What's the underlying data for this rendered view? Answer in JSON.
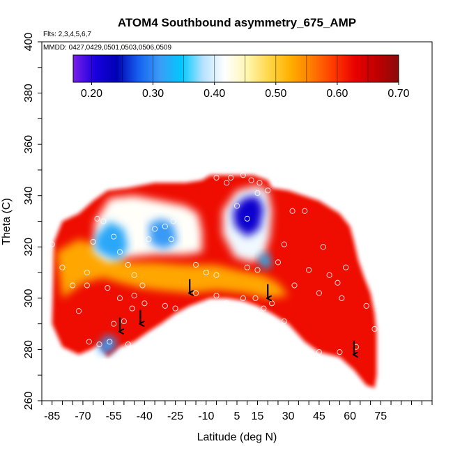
{
  "chart_data": {
    "type": "heatmap",
    "title": "ATOM4 Southbound asymmetry_675_AMP",
    "subtitle_flights": "Flts: 2,3,4,5,6,7",
    "subtitle_dates": "MMDD: 0427,0429,0501,0503,0506,0509",
    "xlabel": "Latitude (deg N)",
    "ylabel": "Theta (C)",
    "xlim": [
      -90,
      100
    ],
    "ylim": [
      260,
      400
    ],
    "x_ticks": [
      -85,
      -70,
      -55,
      -40,
      -25,
      -10,
      5,
      15,
      30,
      45,
      60,
      75
    ],
    "y_ticks": [
      260,
      280,
      300,
      320,
      340,
      360,
      380,
      400
    ],
    "colorbar": {
      "range": [
        0.17,
        0.7
      ],
      "ticks": [
        0.2,
        0.3,
        0.4,
        0.5,
        0.6,
        0.7
      ],
      "tick_labels": [
        "0.20",
        "0.30",
        "0.40",
        "0.50",
        "0.60",
        "0.70"
      ],
      "colors": [
        "#7a1fe8",
        "#1a00e0",
        "#0000b4",
        "#1560f0",
        "#3a9cf6",
        "#00c8ff",
        "#b8e2ff",
        "#ffffff",
        "#fff6b0",
        "#ffd84a",
        "#ffb000",
        "#ff7a00",
        "#ff3a00",
        "#e80000",
        "#c00000",
        "#8c0a0a"
      ]
    },
    "regions": [
      {
        "name": "domain",
        "value": 0.62,
        "lat_theta": [
          [
            -84,
            322
          ],
          [
            -80,
            330
          ],
          [
            -72,
            333
          ],
          [
            -65,
            338
          ],
          [
            -58,
            342
          ],
          [
            -48,
            343
          ],
          [
            -35,
            345
          ],
          [
            -20,
            345
          ],
          [
            -12,
            346
          ],
          [
            -8,
            348
          ],
          [
            5,
            348
          ],
          [
            13,
            348
          ],
          [
            20,
            346
          ],
          [
            22,
            343
          ],
          [
            30,
            342
          ],
          [
            45,
            338
          ],
          [
            55,
            333
          ],
          [
            60,
            328
          ],
          [
            62,
            322
          ],
          [
            64,
            315
          ],
          [
            67,
            308
          ],
          [
            70,
            302
          ],
          [
            72,
            294
          ],
          [
            73,
            286
          ],
          [
            73,
            270
          ],
          [
            72,
            265
          ],
          [
            68,
            266
          ],
          [
            62,
            272
          ],
          [
            55,
            277
          ],
          [
            45,
            279
          ],
          [
            38,
            283
          ],
          [
            30,
            290
          ],
          [
            22,
            294
          ],
          [
            15,
            297
          ],
          [
            8,
            299
          ],
          [
            0,
            300
          ],
          [
            -8,
            300
          ],
          [
            -18,
            297
          ],
          [
            -25,
            294
          ],
          [
            -32,
            290
          ],
          [
            -38,
            287
          ],
          [
            -45,
            283
          ],
          [
            -52,
            281
          ],
          [
            -58,
            277
          ],
          [
            -62,
            282
          ],
          [
            -66,
            280
          ],
          [
            -72,
            278
          ],
          [
            -80,
            281
          ],
          [
            -85,
            290
          ]
        ]
      },
      {
        "name": "warm-band",
        "value": 0.53,
        "lat_theta": [
          [
            -83,
            318
          ],
          [
            -72,
            323
          ],
          [
            -60,
            320
          ],
          [
            -48,
            314
          ],
          [
            -35,
            314
          ],
          [
            -20,
            313
          ],
          [
            -5,
            313
          ],
          [
            5,
            311
          ],
          [
            18,
            309
          ],
          [
            25,
            306
          ],
          [
            30,
            301
          ],
          [
            20,
            300
          ],
          [
            8,
            302
          ],
          [
            -5,
            303
          ],
          [
            -18,
            302
          ],
          [
            -32,
            303
          ],
          [
            -42,
            304
          ],
          [
            -52,
            306
          ],
          [
            -60,
            308
          ],
          [
            -70,
            306
          ],
          [
            -80,
            300
          ]
        ]
      },
      {
        "name": "light-blue-region-south",
        "value": 0.42,
        "lat_theta": [
          [
            -64,
            330
          ],
          [
            -57,
            339
          ],
          [
            -45,
            340
          ],
          [
            -32,
            338
          ],
          [
            -20,
            336
          ],
          [
            -14,
            333
          ],
          [
            -12,
            326
          ],
          [
            -12,
            318
          ],
          [
            -20,
            317
          ],
          [
            -35,
            317
          ],
          [
            -48,
            316
          ],
          [
            -58,
            314
          ],
          [
            -65,
            318
          ]
        ]
      },
      {
        "name": "blue-patch-south-west",
        "value": 0.32,
        "lat_theta": [
          [
            -64,
            324
          ],
          [
            -57,
            330
          ],
          [
            -50,
            327
          ],
          [
            -48,
            320
          ],
          [
            -52,
            315
          ],
          [
            -58,
            316
          ],
          [
            -64,
            319
          ]
        ]
      },
      {
        "name": "blue-patch-south-center",
        "value": 0.31,
        "lat_theta": [
          [
            -38,
            329
          ],
          [
            -32,
            331
          ],
          [
            -26,
            329
          ],
          [
            -24,
            322
          ],
          [
            -30,
            319
          ],
          [
            -37,
            321
          ]
        ]
      },
      {
        "name": "light-blue-region-center",
        "value": 0.41,
        "lat_theta": [
          [
            -2,
            334
          ],
          [
            5,
            342
          ],
          [
            15,
            344
          ],
          [
            20,
            342
          ],
          [
            22,
            334
          ],
          [
            21,
            324
          ],
          [
            18,
            316
          ],
          [
            12,
            314
          ],
          [
            4,
            316
          ],
          [
            -2,
            325
          ]
        ]
      },
      {
        "name": "dark-blue-core-center",
        "value": 0.22,
        "lat_theta": [
          [
            3,
            334
          ],
          [
            8,
            339
          ],
          [
            15,
            340
          ],
          [
            18,
            335
          ],
          [
            16,
            327
          ],
          [
            10,
            324
          ],
          [
            4,
            328
          ]
        ]
      },
      {
        "name": "blue-patch-center-low",
        "value": 0.33,
        "lat_theta": [
          [
            15,
            316
          ],
          [
            20,
            318
          ],
          [
            22,
            313
          ],
          [
            18,
            311
          ]
        ]
      },
      {
        "name": "blue-patch-south-low",
        "value": 0.31,
        "lat_theta": [
          [
            -63,
            281
          ],
          [
            -58,
            286
          ],
          [
            -53,
            283
          ],
          [
            -56,
            279
          ],
          [
            -60,
            278
          ]
        ]
      }
    ],
    "flight_arrows_lat_theta": [
      [
        -52,
        287
      ],
      [
        -42,
        290
      ],
      [
        -18,
        302
      ],
      [
        20,
        300
      ],
      [
        62,
        278
      ]
    ],
    "obs_points_lat_theta": [
      [
        -85,
        321
      ],
      [
        -80,
        312
      ],
      [
        -75,
        305
      ],
      [
        -72,
        295
      ],
      [
        -68,
        305
      ],
      [
        -65,
        322
      ],
      [
        -63,
        331
      ],
      [
        -60,
        330
      ],
      [
        -55,
        324
      ],
      [
        -52,
        318
      ],
      [
        -48,
        313
      ],
      [
        -45,
        309
      ],
      [
        -41,
        305
      ],
      [
        -38,
        323
      ],
      [
        -35,
        327
      ],
      [
        -30,
        328
      ],
      [
        -27,
        323
      ],
      [
        -26,
        330
      ],
      [
        -20,
        328
      ],
      [
        -15,
        313
      ],
      [
        -10,
        310
      ],
      [
        -5,
        309
      ],
      [
        -45,
        301
      ],
      [
        -40,
        298
      ],
      [
        -30,
        297
      ],
      [
        -25,
        296
      ],
      [
        -15,
        302
      ],
      [
        -5,
        301
      ],
      [
        0,
        298
      ],
      [
        8,
        300
      ],
      [
        14,
        300
      ],
      [
        18,
        296
      ],
      [
        22,
        298
      ],
      [
        28,
        291
      ],
      [
        33,
        305
      ],
      [
        40,
        311
      ],
      [
        45,
        302
      ],
      [
        47,
        320
      ],
      [
        50,
        309
      ],
      [
        54,
        306
      ],
      [
        56,
        300
      ],
      [
        58,
        312
      ],
      [
        10,
        312
      ],
      [
        15,
        311
      ],
      [
        25,
        314
      ],
      [
        28,
        321
      ],
      [
        32,
        334
      ],
      [
        38,
        334
      ],
      [
        5,
        336
      ],
      [
        10,
        331
      ],
      [
        15,
        341
      ],
      [
        20,
        342
      ],
      [
        2,
        347
      ],
      [
        8,
        348
      ],
      [
        -5,
        347
      ],
      [
        0,
        345
      ],
      [
        12,
        346
      ],
      [
        16,
        345
      ],
      [
        -55,
        290
      ],
      [
        -50,
        291
      ],
      [
        -48,
        282
      ],
      [
        -57,
        283
      ],
      [
        -62,
        282
      ],
      [
        -67,
        283
      ],
      [
        -52,
        300
      ],
      [
        -46,
        296
      ],
      [
        45,
        279
      ],
      [
        55,
        279
      ],
      [
        63,
        281
      ],
      [
        72,
        288
      ],
      [
        68,
        297
      ],
      [
        -58,
        304
      ],
      [
        -68,
        310
      ]
    ]
  }
}
